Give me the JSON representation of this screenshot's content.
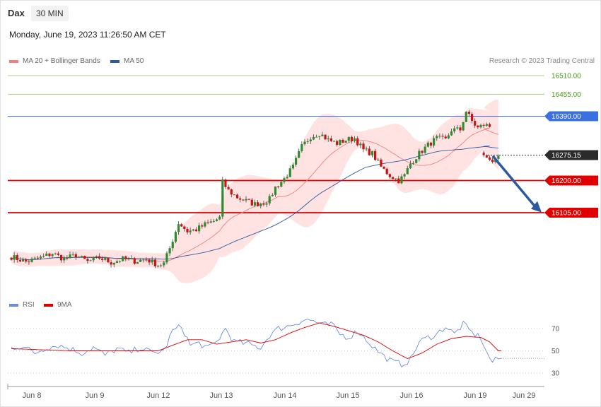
{
  "header": {
    "instrument": "Dax",
    "timeframe": "30 MIN",
    "datetime": "Monday, June 19, 2023 11:26:50 AM CET"
  },
  "legend": {
    "ma20": "MA 20 + Bollinger Bands",
    "ma50": "MA 50",
    "rsi": "RSI",
    "rsi_ma": "9MA",
    "copyright": "Research © 2023 Trading Central"
  },
  "colors": {
    "bull": "#2e8b2e",
    "bear": "#cc1111",
    "band_fill": "#ffdede",
    "ma20": "#f08080",
    "ma50": "#2c5aa0",
    "rsi": "#6a8de0",
    "rsi_ma": "#dd0000",
    "green_level": "#a8d08d",
    "blue_level": "#3a70e0",
    "red_level": "#e00000",
    "arrow": "#2c5aa0"
  },
  "chart_data": [
    {
      "type": "candlestick",
      "ylim": [
        15800,
        16540
      ],
      "levels": [
        {
          "label": "16510.00",
          "value": 16510,
          "kind": "green"
        },
        {
          "label": "16455.00",
          "value": 16455,
          "kind": "green"
        },
        {
          "label": "16390.00",
          "value": 16390,
          "kind": "blue"
        },
        {
          "label": "16275.15",
          "value": 16275.15,
          "kind": "current"
        },
        {
          "label": "16200.00",
          "value": 16200,
          "kind": "red"
        },
        {
          "label": "16105.00",
          "value": 16105,
          "kind": "red"
        }
      ],
      "x_ticks": [
        "Jun 8",
        "Jun 9",
        "Jun 12",
        "Jun 13",
        "Jun 14",
        "Jun 15",
        "Jun 16",
        "Jun 19",
        "Jun 29"
      ],
      "forecast_arrow": {
        "from": 16270,
        "to": 16110
      },
      "anchors": [
        [
          0,
          15975
        ],
        [
          5,
          15960
        ],
        [
          10,
          15972
        ],
        [
          14,
          15985
        ],
        [
          18,
          15968
        ],
        [
          22,
          15980
        ],
        [
          26,
          15960
        ],
        [
          30,
          15972
        ],
        [
          34,
          15958
        ],
        [
          38,
          15968
        ],
        [
          42,
          15962
        ],
        [
          46,
          15968
        ],
        [
          50,
          15950
        ],
        [
          52,
          15955
        ],
        [
          54,
          16000
        ],
        [
          57,
          16075
        ],
        [
          60,
          16050
        ],
        [
          63,
          16055
        ],
        [
          66,
          16070
        ],
        [
          69,
          16080
        ],
        [
          71,
          16090
        ],
        [
          72,
          16195
        ],
        [
          74,
          16170
        ],
        [
          77,
          16150
        ],
        [
          80,
          16140
        ],
        [
          83,
          16130
        ],
        [
          86,
          16135
        ],
        [
          88,
          16145
        ],
        [
          90,
          16180
        ],
        [
          93,
          16205
        ],
        [
          96,
          16240
        ],
        [
          99,
          16300
        ],
        [
          102,
          16330
        ],
        [
          105,
          16340
        ],
        [
          108,
          16320
        ],
        [
          111,
          16310
        ],
        [
          114,
          16320
        ],
        [
          117,
          16325
        ],
        [
          120,
          16290
        ],
        [
          123,
          16280
        ],
        [
          126,
          16240
        ],
        [
          129,
          16215
        ],
        [
          132,
          16200
        ],
        [
          134,
          16215
        ],
        [
          136,
          16250
        ],
        [
          139,
          16280
        ],
        [
          142,
          16305
        ],
        [
          145,
          16325
        ],
        [
          148,
          16320
        ],
        [
          150,
          16350
        ],
        [
          153,
          16350
        ],
        [
          155,
          16405
        ],
        [
          157,
          16375
        ],
        [
          159,
          16355
        ],
        [
          161,
          16365
        ],
        [
          163,
          16360
        ]
      ],
      "gap_anchors": [
        [
          0,
          16275
        ],
        [
          3,
          16255
        ],
        [
          5,
          16273
        ]
      ]
    },
    {
      "type": "line",
      "name": "RSI",
      "ylim": [
        20,
        83
      ],
      "y_ticks": [
        70,
        50,
        30
      ],
      "levels": [
        {
          "label": "70",
          "value": 70
        },
        {
          "label": "50",
          "value": 50
        },
        {
          "label": "30",
          "value": 30
        }
      ],
      "rsi_anchors": [
        [
          0,
          53
        ],
        [
          4,
          54
        ],
        [
          8,
          48
        ],
        [
          12,
          53
        ],
        [
          16,
          55
        ],
        [
          20,
          52
        ],
        [
          24,
          48
        ],
        [
          28,
          53
        ],
        [
          32,
          46
        ],
        [
          36,
          52
        ],
        [
          40,
          48
        ],
        [
          44,
          53
        ],
        [
          48,
          48
        ],
        [
          52,
          50
        ],
        [
          55,
          68
        ],
        [
          58,
          72
        ],
        [
          61,
          55
        ],
        [
          64,
          57
        ],
        [
          67,
          52
        ],
        [
          70,
          58
        ],
        [
          73,
          70
        ],
        [
          76,
          58
        ],
        [
          79,
          57
        ],
        [
          82,
          55
        ],
        [
          85,
          53
        ],
        [
          88,
          64
        ],
        [
          91,
          70
        ],
        [
          94,
          72
        ],
        [
          97,
          75
        ],
        [
          100,
          78
        ],
        [
          103,
          77
        ],
        [
          106,
          73
        ],
        [
          109,
          74
        ],
        [
          112,
          65
        ],
        [
          115,
          62
        ],
        [
          118,
          68
        ],
        [
          121,
          60
        ],
        [
          124,
          52
        ],
        [
          127,
          45
        ],
        [
          130,
          40
        ],
        [
          133,
          38
        ],
        [
          136,
          42
        ],
        [
          139,
          58
        ],
        [
          142,
          62
        ],
        [
          145,
          65
        ],
        [
          148,
          72
        ],
        [
          151,
          65
        ],
        [
          154,
          74
        ],
        [
          157,
          66
        ],
        [
          160,
          62
        ],
        [
          162,
          48
        ],
        [
          164,
          40
        ],
        [
          166,
          43
        ]
      ],
      "ma_anchors": [
        [
          0,
          52
        ],
        [
          10,
          51
        ],
        [
          20,
          50
        ],
        [
          30,
          50
        ],
        [
          40,
          50
        ],
        [
          50,
          50
        ],
        [
          55,
          55
        ],
        [
          60,
          60
        ],
        [
          65,
          60
        ],
        [
          70,
          56
        ],
        [
          75,
          58
        ],
        [
          80,
          60
        ],
        [
          85,
          57
        ],
        [
          90,
          60
        ],
        [
          95,
          66
        ],
        [
          100,
          71
        ],
        [
          105,
          75
        ],
        [
          110,
          72
        ],
        [
          115,
          68
        ],
        [
          120,
          64
        ],
        [
          125,
          58
        ],
        [
          130,
          50
        ],
        [
          135,
          43
        ],
        [
          140,
          48
        ],
        [
          145,
          56
        ],
        [
          150,
          61
        ],
        [
          155,
          63
        ],
        [
          160,
          62
        ],
        [
          163,
          58
        ],
        [
          166,
          50
        ]
      ]
    }
  ]
}
